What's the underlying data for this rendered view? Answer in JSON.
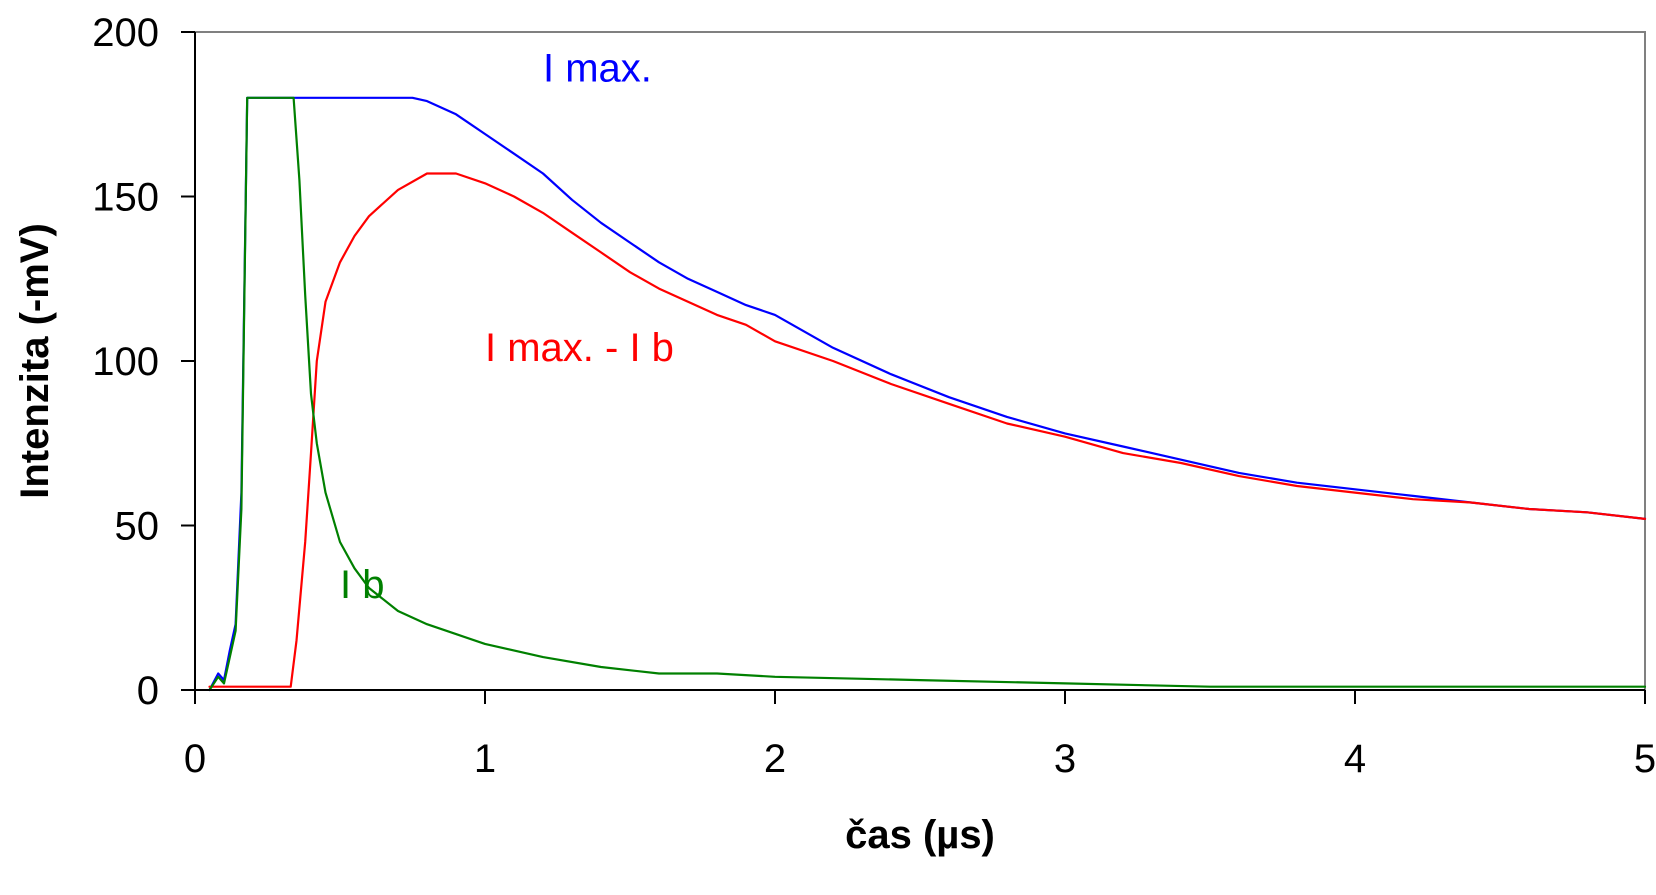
{
  "chart_data": {
    "type": "line",
    "title": "",
    "xlabel": "čas (µs)",
    "ylabel": "Intenzita (-mV)",
    "xlim": [
      0,
      5
    ],
    "ylim": [
      0,
      200
    ],
    "xticks": [
      0,
      1,
      2,
      3,
      4,
      5
    ],
    "yticks": [
      0,
      50,
      100,
      150,
      200
    ],
    "xtick_labels": [
      "0",
      "1",
      "2",
      "3",
      "4",
      "5"
    ],
    "ytick_labels": [
      "0",
      "50",
      "100",
      "150",
      "200"
    ],
    "grid": false,
    "legend": "none",
    "colors": {
      "axis": "#000000",
      "frame": "#808080"
    },
    "series": [
      {
        "name": "I max.",
        "color": "#0000ff",
        "x": [
          0.05,
          0.08,
          0.1,
          0.12,
          0.14,
          0.16,
          0.17,
          0.18,
          0.2,
          0.3,
          0.4,
          0.5,
          0.6,
          0.7,
          0.75,
          0.8,
          0.9,
          1.0,
          1.1,
          1.2,
          1.3,
          1.4,
          1.5,
          1.6,
          1.7,
          1.8,
          1.9,
          2.0,
          2.2,
          2.4,
          2.6,
          2.8,
          3.0,
          3.2,
          3.4,
          3.6,
          3.8,
          4.0,
          4.2,
          4.4,
          4.6,
          4.8,
          5.0
        ],
        "y": [
          0,
          5,
          3,
          12,
          20,
          60,
          120,
          180,
          180,
          180,
          180,
          180,
          180,
          180,
          180,
          179,
          175,
          169,
          163,
          157,
          149,
          142,
          136,
          130,
          125,
          121,
          117,
          114,
          104,
          96,
          89,
          83,
          78,
          74,
          70,
          66,
          63,
          61,
          59,
          57,
          55,
          54,
          52
        ]
      },
      {
        "name": "I max. - I b",
        "color": "#ff0000",
        "x": [
          0.05,
          0.2,
          0.33,
          0.35,
          0.38,
          0.4,
          0.42,
          0.45,
          0.5,
          0.55,
          0.6,
          0.7,
          0.8,
          0.9,
          1.0,
          1.1,
          1.2,
          1.3,
          1.4,
          1.5,
          1.6,
          1.7,
          1.8,
          1.9,
          2.0,
          2.2,
          2.4,
          2.6,
          2.8,
          3.0,
          3.2,
          3.4,
          3.6,
          3.8,
          4.0,
          4.2,
          4.4,
          4.6,
          4.8,
          5.0
        ],
        "y": [
          1,
          1,
          1,
          15,
          45,
          72,
          100,
          118,
          130,
          138,
          144,
          152,
          157,
          157,
          154,
          150,
          145,
          139,
          133,
          127,
          122,
          118,
          114,
          111,
          106,
          100,
          93,
          87,
          81,
          77,
          72,
          69,
          65,
          62,
          60,
          58,
          57,
          55,
          54,
          52
        ]
      },
      {
        "name": "I b",
        "color": "#008000",
        "x": [
          0.05,
          0.08,
          0.1,
          0.12,
          0.14,
          0.16,
          0.17,
          0.18,
          0.2,
          0.3,
          0.34,
          0.36,
          0.38,
          0.4,
          0.42,
          0.45,
          0.5,
          0.55,
          0.6,
          0.7,
          0.8,
          0.9,
          1.0,
          1.2,
          1.4,
          1.6,
          1.8,
          2.0,
          2.5,
          3.0,
          3.5,
          4.0,
          4.5,
          5.0
        ],
        "y": [
          0,
          4,
          2,
          10,
          18,
          55,
          118,
          180,
          180,
          180,
          180,
          155,
          120,
          90,
          75,
          60,
          45,
          37,
          31,
          24,
          20,
          17,
          14,
          10,
          7,
          5,
          5,
          4,
          3,
          2,
          1,
          1,
          1,
          1
        ]
      }
    ],
    "annotations": [
      {
        "text": "I max.",
        "x": 1.2,
        "y": 185,
        "color": "#0000ff"
      },
      {
        "text": "I max. - I b",
        "x": 1.0,
        "y": 100,
        "color": "#ff0000"
      },
      {
        "text": "I b",
        "x": 0.5,
        "y": 28,
        "color": "#008000"
      }
    ]
  }
}
